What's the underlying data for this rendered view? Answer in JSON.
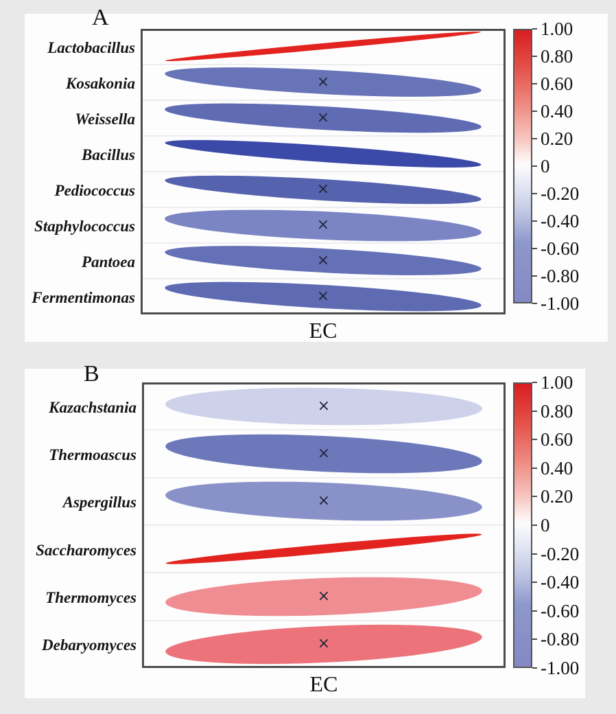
{
  "figure": {
    "panels": [
      {
        "label": "A",
        "x_axis_label": "EC",
        "rows": [
          {
            "genus": "Lactobacillus",
            "r": 0.95,
            "color": "#e3231f",
            "x_mark": false
          },
          {
            "genus": "Kosakonia",
            "r": -0.55,
            "color": "#6874b8",
            "x_mark": true
          },
          {
            "genus": "Weissella",
            "r": -0.58,
            "color": "#5f6cb4",
            "x_mark": true
          },
          {
            "genus": "Bacillus",
            "r": -0.72,
            "color": "#3b49a8",
            "x_mark": false
          },
          {
            "genus": "Pediococcus",
            "r": -0.62,
            "color": "#5562ae",
            "x_mark": true
          },
          {
            "genus": "Staphylococcus",
            "r": -0.45,
            "color": "#7b85c3",
            "x_mark": true
          },
          {
            "genus": "Pantoea",
            "r": -0.55,
            "color": "#6471b6",
            "x_mark": true
          },
          {
            "genus": "Fermentimonas",
            "r": -0.58,
            "color": "#5e6bb3",
            "x_mark": true
          }
        ],
        "colorbar": {
          "ticks": [
            "1.00",
            "0.80",
            "0.60",
            "0.40",
            "0.20",
            "0",
            "-0.20",
            "-0.40",
            "-0.60",
            "-0.80",
            "-1.00"
          ]
        }
      },
      {
        "label": "B",
        "x_axis_label": "EC",
        "rows": [
          {
            "genus": "Kazachstania",
            "r": -0.15,
            "color": "#cdd2ea",
            "x_mark": true
          },
          {
            "genus": "Thermoascus",
            "r": -0.5,
            "color": "#6d78bb",
            "x_mark": true
          },
          {
            "genus": "Aspergillus",
            "r": -0.4,
            "color": "#8992c8",
            "x_mark": true
          },
          {
            "genus": "Saccharomyces",
            "r": 0.95,
            "color": "#e2231f",
            "x_mark": false
          },
          {
            "genus": "Thermomyces",
            "r": 0.38,
            "color": "#f08d92",
            "x_mark": true
          },
          {
            "genus": "Debaryomyces",
            "r": 0.48,
            "color": "#ec7379",
            "x_mark": true
          }
        ],
        "colorbar": {
          "ticks": [
            "1.00",
            "0.80",
            "0.60",
            "0.40",
            "0.20",
            "0",
            "-0.20",
            "-0.40",
            "-0.60",
            "-0.80",
            "-1.00"
          ]
        }
      }
    ],
    "colors": {
      "positive_max": "#d91d22",
      "zero": "#fbfbfd",
      "negative_max": "#2a3693"
    }
  },
  "chart_data": [
    {
      "type": "heatmap",
      "subtype": "correlation-ellipse",
      "panel": "A",
      "x": [
        "EC"
      ],
      "categories": [
        "Lactobacillus",
        "Kosakonia",
        "Weissella",
        "Bacillus",
        "Pediococcus",
        "Staphylococcus",
        "Pantoea",
        "Fermentimonas"
      ],
      "values": [
        0.95,
        -0.55,
        -0.58,
        -0.72,
        -0.62,
        -0.45,
        -0.55,
        -0.58
      ],
      "not_significant_x_mark": [
        false,
        true,
        true,
        false,
        true,
        true,
        true,
        true
      ],
      "title": "A",
      "xlabel": "EC",
      "ylabel": "",
      "colorbar_range": [
        -1.0,
        1.0
      ],
      "colorbar_ticks": [
        1.0,
        0.8,
        0.6,
        0.4,
        0.2,
        0,
        -0.2,
        -0.4,
        -0.6,
        -0.8,
        -1.0
      ],
      "legend_position": "right",
      "grid": true
    },
    {
      "type": "heatmap",
      "subtype": "correlation-ellipse",
      "panel": "B",
      "x": [
        "EC"
      ],
      "categories": [
        "Kazachstania",
        "Thermoascus",
        "Aspergillus",
        "Saccharomyces",
        "Thermomyces",
        "Debaryomyces"
      ],
      "values": [
        -0.15,
        -0.5,
        -0.4,
        0.95,
        0.38,
        0.48
      ],
      "not_significant_x_mark": [
        true,
        true,
        true,
        false,
        true,
        true
      ],
      "title": "B",
      "xlabel": "EC",
      "ylabel": "",
      "colorbar_range": [
        -1.0,
        1.0
      ],
      "colorbar_ticks": [
        1.0,
        0.8,
        0.6,
        0.4,
        0.2,
        0,
        -0.2,
        -0.4,
        -0.6,
        -0.8,
        -1.0
      ],
      "legend_position": "right",
      "grid": true
    }
  ]
}
